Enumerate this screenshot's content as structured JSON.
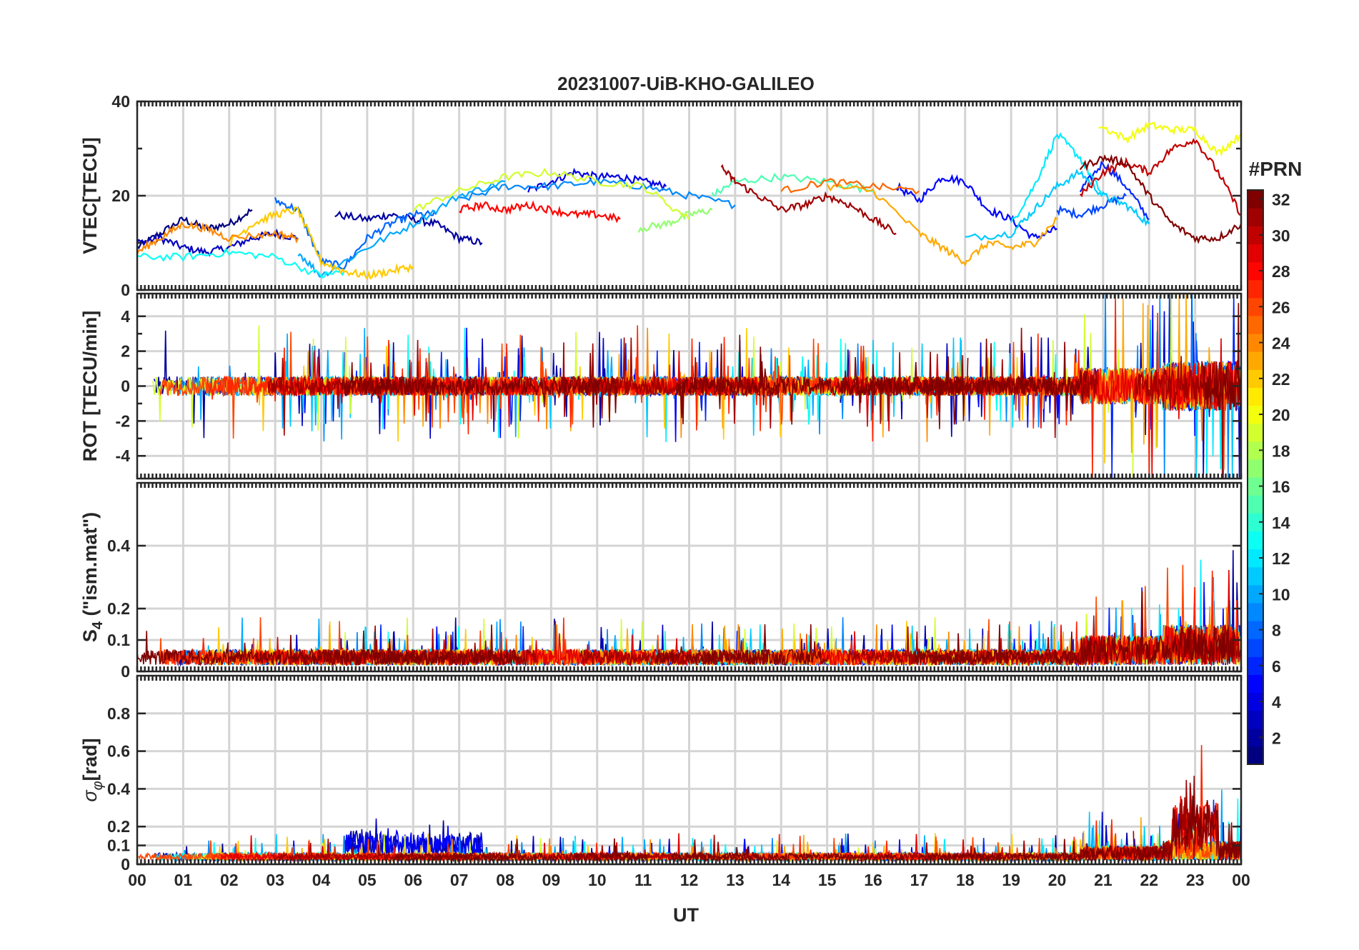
{
  "chart_data": {
    "title": "20231007-UiB-KHO-GALILEO",
    "type": "line",
    "xlabel": "UT",
    "x_tick_labels": [
      "00",
      "01",
      "02",
      "03",
      "04",
      "05",
      "06",
      "07",
      "08",
      "09",
      "10",
      "11",
      "12",
      "13",
      "14",
      "15",
      "16",
      "17",
      "18",
      "19",
      "20",
      "21",
      "22",
      "23",
      "00"
    ],
    "xlim_hours": [
      0,
      24
    ],
    "grid": true,
    "colorbar": {
      "title": "#PRN",
      "range": [
        1,
        32
      ],
      "tick_labels": [
        "2",
        "4",
        "6",
        "8",
        "10",
        "12",
        "14",
        "16",
        "18",
        "20",
        "22",
        "24",
        "26",
        "28",
        "30",
        "32"
      ],
      "colormap": "jet",
      "placement": "right"
    },
    "panels": [
      {
        "name": "vtec",
        "ylabel": "VTEC[TECU]",
        "ylim": [
          0,
          40
        ],
        "ytick_labels": [
          "0",
          "20",
          "40"
        ],
        "series": [
          {
            "prn": 1,
            "x": [
              0.0,
              0.5,
              1.0,
              1.5,
              2.0,
              2.5
            ],
            "values": [
              9,
              12,
              15,
              13,
              14,
              17
            ]
          },
          {
            "prn": 3,
            "x": [
              0.0,
              0.5,
              1.0,
              1.5,
              2.0,
              2.5,
              3.0,
              3.5
            ],
            "values": [
              10,
              11,
              9,
              8,
              9,
              11,
              12,
              11
            ]
          },
          {
            "prn": 2,
            "x": [
              4.3,
              5.0,
              5.5,
              6.0,
              6.5,
              7.0,
              7.5
            ],
            "values": [
              16,
              15,
              16,
              15,
              14,
              11,
              10
            ]
          },
          {
            "prn": 4,
            "x": [
              8.5,
              9.0,
              9.5,
              10.0,
              10.5,
              11.0,
              11.5
            ],
            "values": [
              21,
              23,
              25,
              24,
              24,
              23,
              22
            ]
          },
          {
            "prn": 5,
            "x": [
              16.5,
              17.0,
              17.5,
              18.0,
              18.5,
              19.0,
              19.5,
              20.0
            ],
            "values": [
              22,
              19,
              24,
              23,
              17,
              15,
              11,
              13
            ]
          },
          {
            "prn": 6,
            "x": [
              20.5,
              21.0,
              21.5,
              22.0
            ],
            "values": [
              21,
              27,
              22,
              15
            ]
          },
          {
            "prn": 7,
            "x": [
              20.0,
              20.5,
              21.0,
              21.5
            ],
            "values": [
              17,
              16,
              18,
              20
            ]
          },
          {
            "prn": 8,
            "x": [
              3.0,
              3.5,
              4.0,
              4.5,
              5.0,
              5.5,
              6.0,
              6.5
            ],
            "values": [
              19,
              17,
              6,
              5,
              11,
              14,
              16,
              16
            ]
          },
          {
            "prn": 9,
            "x": [
              7.0,
              8.0,
              9.0,
              10.0,
              11.0,
              12.0,
              13.0
            ],
            "values": [
              19,
              22,
              22,
              23,
              22,
              20,
              18
            ]
          },
          {
            "prn": 10,
            "x": [
              3.5,
              4.0,
              5.0,
              6.0,
              7.0,
              8.0
            ],
            "values": [
              8,
              3,
              9,
              14,
              20,
              23
            ]
          },
          {
            "prn": 11,
            "x": [
              18.0,
              19.0,
              19.5,
              20.0,
              20.5,
              21.0,
              21.5,
              22.0
            ],
            "values": [
              11,
              12,
              17,
              22,
              25,
              20,
              18,
              14
            ]
          },
          {
            "prn": 12,
            "x": [
              19.0,
              19.5,
              20.0,
              20.5,
              21.0
            ],
            "values": [
              14,
              22,
              33,
              28,
              20
            ]
          },
          {
            "prn": 13,
            "x": [
              0.0,
              1.0,
              2.0,
              3.0,
              4.0,
              4.5
            ],
            "values": [
              7,
              7,
              8,
              7,
              3,
              4
            ]
          },
          {
            "prn": 15,
            "x": [
              12.5,
              13.0,
              14.0,
              15.0,
              16.0
            ],
            "values": [
              20,
              23,
              24,
              23,
              21
            ]
          },
          {
            "prn": 17,
            "x": [
              10.9,
              11.5,
              12.0,
              12.5
            ],
            "values": [
              13,
              14,
              16,
              17
            ]
          },
          {
            "prn": 19,
            "x": [
              6.0,
              7.0,
              8.0,
              9.0,
              10.0,
              11.0,
              12.0
            ],
            "values": [
              17,
              21,
              24,
              25,
              23,
              22,
              15
            ]
          },
          {
            "prn": 20,
            "x": [
              20.9,
              21.5,
              22.0,
              22.5,
              23.0,
              23.5,
              24.0
            ],
            "values": [
              35,
              32,
              35,
              34,
              34,
              29,
              33
            ]
          },
          {
            "prn": 22,
            "x": [
              2.0,
              2.5,
              3.0,
              3.5,
              4.0,
              4.5,
              5.0,
              5.5,
              6.0
            ],
            "values": [
              10,
              14,
              16,
              17,
              6,
              4,
              3,
              4,
              5
            ]
          },
          {
            "prn": 23,
            "x": [
              15.0,
              16.0,
              17.0,
              17.5,
              18.0,
              18.5,
              19.0,
              19.5,
              20.0
            ],
            "values": [
              22,
              21,
              12,
              9,
              6,
              10,
              9,
              10,
              15
            ]
          },
          {
            "prn": 24,
            "x": [
              0.0,
              0.5,
              1.0,
              1.5,
              2.0,
              3.0,
              3.5
            ],
            "values": [
              8,
              11,
              14,
              13,
              11,
              12,
              11
            ]
          },
          {
            "prn": 25,
            "x": [
              14.0,
              15.0,
              16.0,
              17.0
            ],
            "values": [
              21,
              23,
              22,
              21
            ]
          },
          {
            "prn": 28,
            "x": [
              7.0,
              7.5,
              8.0,
              8.5,
              9.0,
              9.5,
              10.0,
              10.5
            ],
            "values": [
              17,
              18,
              17,
              18,
              17,
              16,
              16,
              15
            ]
          },
          {
            "prn": 30,
            "x": [
              20.5,
              21.0,
              21.5,
              22.0,
              22.5,
              23.0,
              23.5,
              24.0
            ],
            "values": [
              20,
              25,
              27,
              25,
              30,
              32,
              25,
              16
            ]
          },
          {
            "prn": 31,
            "x": [
              12.7,
              13.0,
              13.5,
              14.0,
              14.5,
              15.0,
              15.5,
              16.0,
              16.5
            ],
            "values": [
              26,
              23,
              20,
              17,
              18,
              20,
              18,
              15,
              12
            ]
          },
          {
            "prn": 32,
            "x": [
              20.5,
              21.0,
              21.5,
              22.0,
              22.5,
              23.0,
              23.5,
              24.0
            ],
            "values": [
              26,
              28,
              27,
              20,
              14,
              11,
              11,
              14
            ]
          }
        ]
      },
      {
        "name": "rot",
        "ylabel": "ROT [TECU/min]",
        "ylim": [
          -5.3,
          5.3
        ],
        "ytick_labels": [
          "-4",
          "-2",
          "0",
          "2",
          "4"
        ]
      },
      {
        "name": "s4",
        "ylabel": "S4 (\"ism.mat\")",
        "ylabel_main": "S",
        "ylabel_sub": "4",
        "ylabel_rest": " (\"ism.mat\")",
        "ylim": [
          0,
          0.6
        ],
        "ytick_labels": [
          "0",
          "0.1",
          "0.2",
          "0.4"
        ]
      },
      {
        "name": "sigma_phi",
        "ylabel": "σφ[rad]",
        "ylabel_main": "σ",
        "ylabel_sub": "φ",
        "ylabel_rest": "[rad]",
        "ylim": [
          0,
          1.0
        ],
        "ytick_labels": [
          "0",
          "0.1",
          "0.2",
          "0.4",
          "0.6",
          "0.8"
        ]
      }
    ]
  }
}
